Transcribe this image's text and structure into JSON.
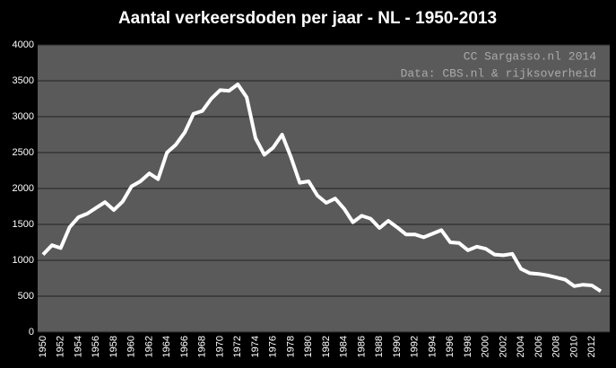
{
  "chart_data": {
    "type": "line",
    "title": "Aantal verkeersdoden per jaar - NL - 1950-2013",
    "annotations": [
      "CC Sargasso.nl 2014",
      "Data: CBS.nl & rijksoverheid"
    ],
    "categories": [
      "1950",
      null,
      "1952",
      null,
      "1954",
      null,
      "1956",
      null,
      "1958",
      null,
      "1960",
      null,
      "1962",
      null,
      "1964",
      null,
      "1966",
      null,
      "1968",
      null,
      "1970",
      null,
      "1972",
      null,
      "1974",
      null,
      "1976",
      null,
      "1978",
      null,
      "1980",
      null,
      "1982",
      null,
      "1984",
      null,
      "1986",
      null,
      "1988",
      null,
      "1990",
      null,
      "1992",
      null,
      "1994",
      null,
      "1996",
      null,
      "1998",
      null,
      "2000",
      null,
      "2002",
      null,
      "2004",
      null,
      "2006",
      null,
      "2008",
      null,
      "2010",
      null,
      "2012",
      null
    ],
    "values": [
      1080,
      1210,
      1170,
      1460,
      1600,
      1650,
      1730,
      1810,
      1700,
      1820,
      2030,
      2100,
      2210,
      2130,
      2500,
      2610,
      2780,
      3040,
      3080,
      3250,
      3370,
      3360,
      3450,
      3270,
      2700,
      2470,
      2570,
      2750,
      2440,
      2080,
      2100,
      1900,
      1800,
      1860,
      1720,
      1530,
      1620,
      1580,
      1450,
      1550,
      1460,
      1360,
      1360,
      1320,
      1370,
      1420,
      1250,
      1240,
      1140,
      1190,
      1160,
      1080,
      1070,
      1090,
      880,
      820,
      810,
      790,
      760,
      730,
      640,
      660,
      650,
      570
    ],
    "color": "#ffffff",
    "ylim": [
      0,
      4000
    ],
    "yticks": [
      0,
      500,
      1000,
      1500,
      2000,
      2500,
      3000,
      3500,
      4000
    ],
    "grid": true
  }
}
